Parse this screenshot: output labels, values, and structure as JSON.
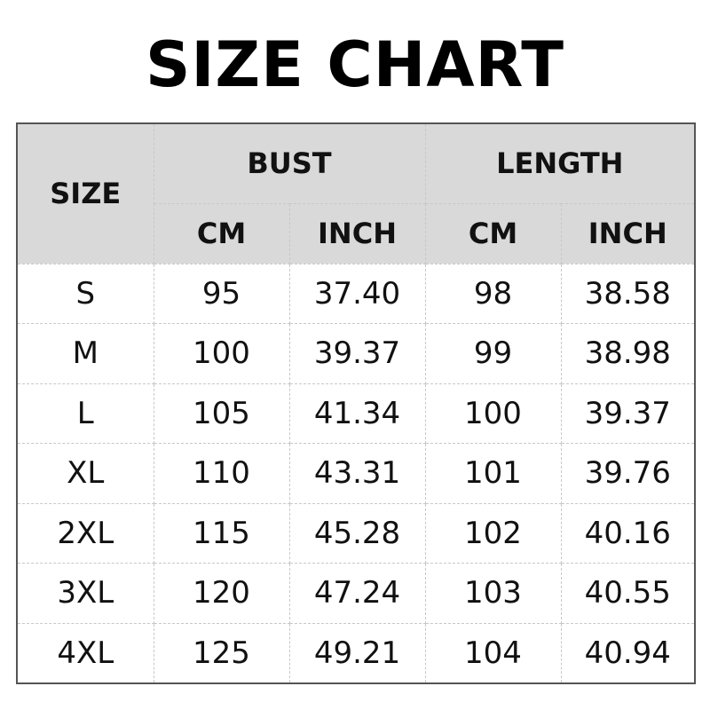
{
  "title": "SIZE CHART",
  "chart_data": {
    "type": "table",
    "title": "SIZE CHART",
    "header_groups": [
      "SIZE",
      "BUST",
      "LENGTH"
    ],
    "subheaders": [
      "CM",
      "INCH",
      "CM",
      "INCH"
    ],
    "rows": [
      [
        "S",
        "95",
        "37.40",
        "98",
        "38.58"
      ],
      [
        "M",
        "100",
        "39.37",
        "99",
        "38.98"
      ],
      [
        "L",
        "105",
        "41.34",
        "100",
        "39.37"
      ],
      [
        "XL",
        "110",
        "43.31",
        "101",
        "39.76"
      ],
      [
        "2XL",
        "115",
        "45.28",
        "102",
        "40.16"
      ],
      [
        "3XL",
        "120",
        "47.24",
        "103",
        "40.55"
      ],
      [
        "4XL",
        "125",
        "49.21",
        "104",
        "40.94"
      ]
    ],
    "header_bg": "#d9d9d9"
  }
}
